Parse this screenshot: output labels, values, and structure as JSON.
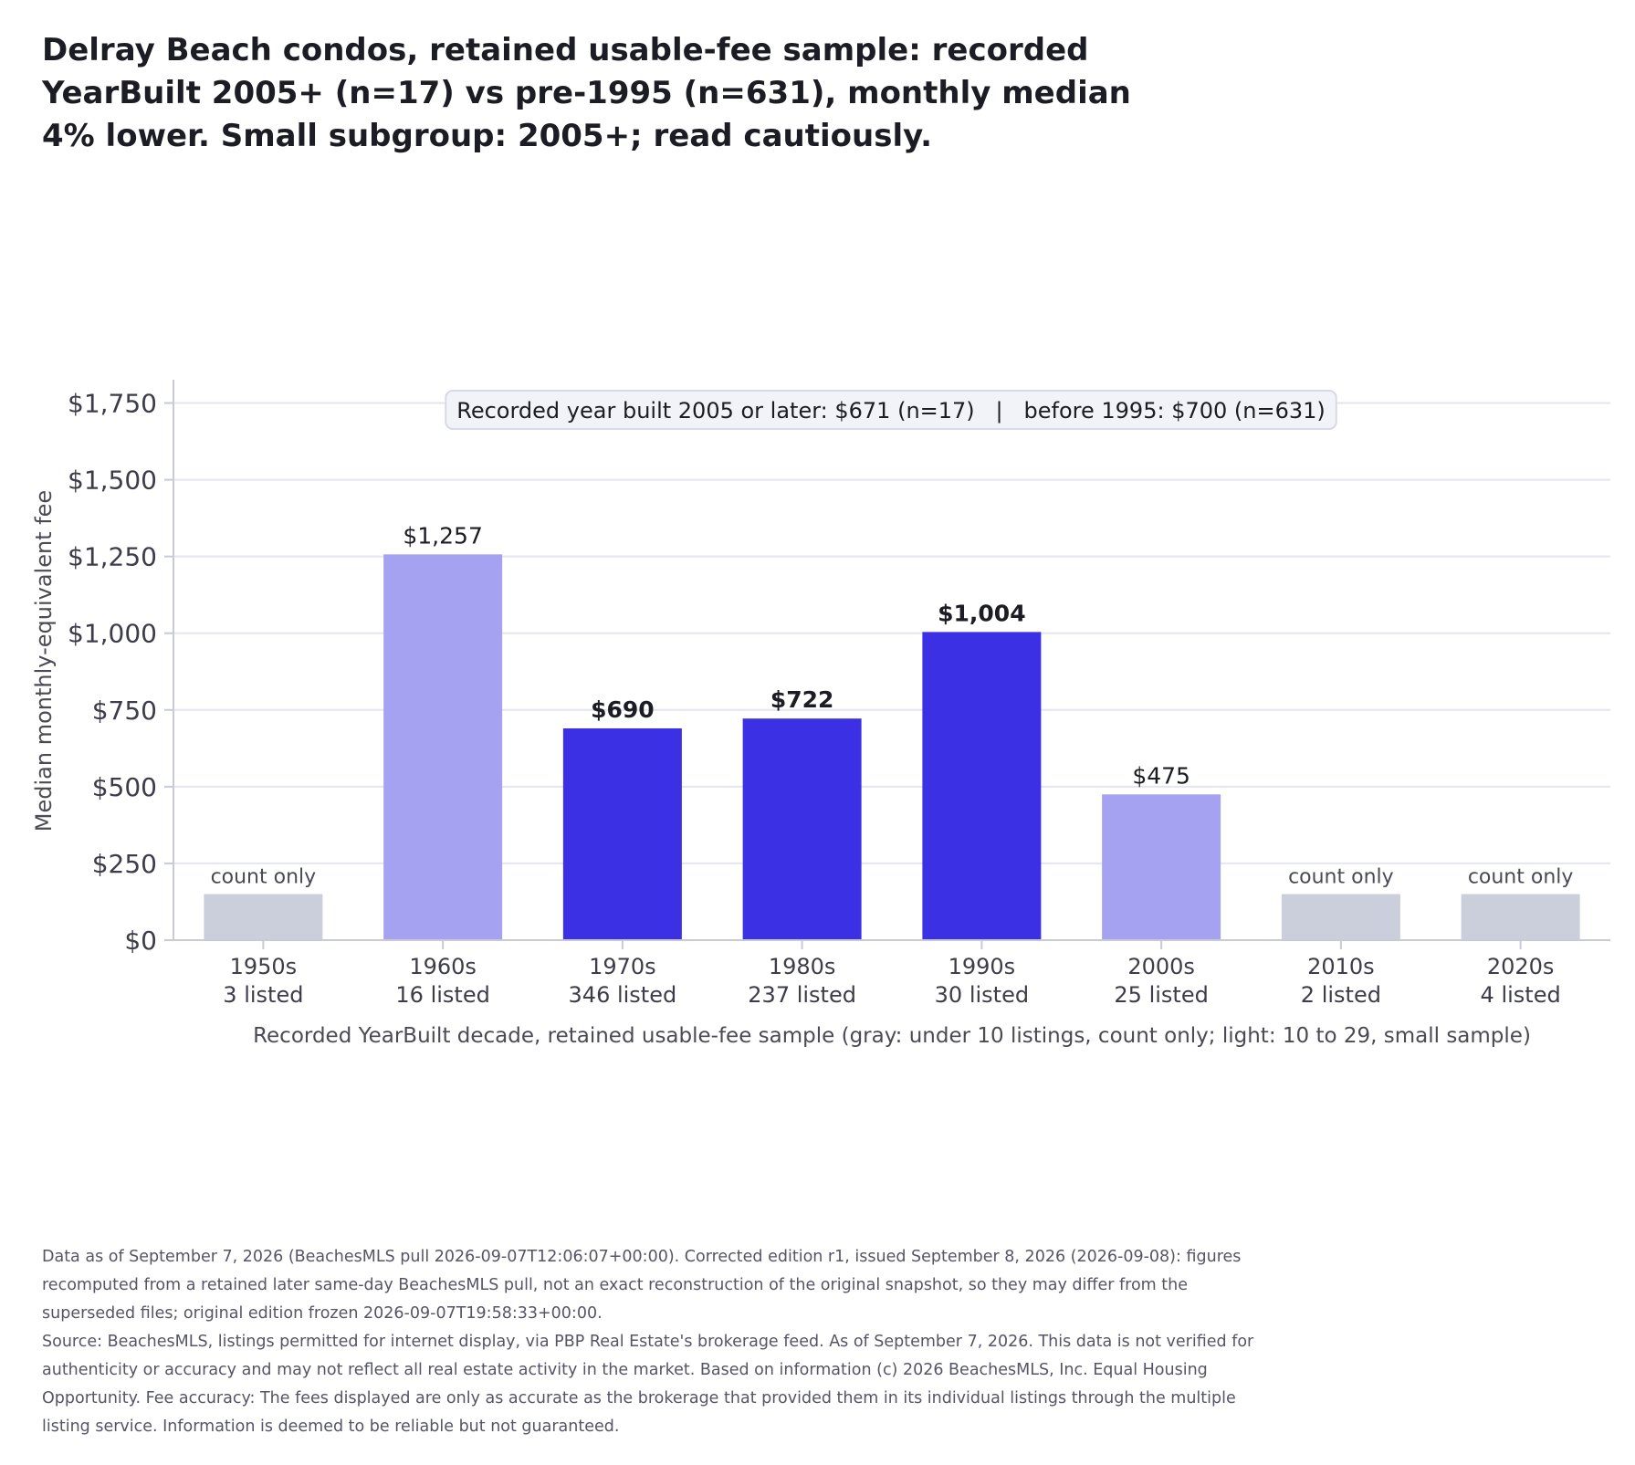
{
  "chart_data": {
    "type": "bar",
    "title": "Delray Beach condos, retained usable-fee sample: recorded YearBuilt 2005+ (n=17) vs pre-1995 (n=631), monthly median 4% lower. Small subgroup: 2005+; read cautiously.",
    "ylabel": "Median monthly-equivalent fee",
    "xlabel": "Recorded YearBuilt decade, retained usable-fee sample (gray: under 10 listings, count only; light: 10 to 29, small sample)",
    "ylim": [
      0,
      1820
    ],
    "yticks": [
      0,
      250,
      500,
      750,
      1000,
      1250,
      1500,
      1750
    ],
    "ytick_labels": [
      "$0",
      "$250",
      "$500",
      "$750",
      "$1,000",
      "$1,250",
      "$1,500",
      "$1,750"
    ],
    "grid": "horizontal",
    "categories": [
      "1950s",
      "1960s",
      "1970s",
      "1980s",
      "1990s",
      "2000s",
      "2010s",
      "2020s"
    ],
    "counts": [
      "3 listed",
      "16 listed",
      "346 listed",
      "237 listed",
      "30 listed",
      "25 listed",
      "2 listed",
      "4 listed"
    ],
    "values": [
      150,
      1257,
      690,
      722,
      1004,
      475,
      150,
      150
    ],
    "value_labels": [
      "count only",
      "$1,257",
      "$690",
      "$722",
      "$1,004",
      "$475",
      "count only",
      "count only"
    ],
    "bar_groups": [
      "count-only",
      "small",
      "full",
      "full",
      "full",
      "small",
      "count-only",
      "count-only"
    ],
    "colors": {
      "count-only": "#cbcfdc",
      "small": "#a6a2f2",
      "full": "#3b30e3",
      "grid": "#e3e5f0",
      "axis": "#c8cad6"
    },
    "annotation": "Recorded year built 2005 or later: $671 (n=17)   |   before 1995: $700 (n=631)"
  },
  "footnotes": [
    "Data as of September 7, 2026 (BeachesMLS pull 2026-09-07T12:06:07+00:00). Corrected edition r1, issued September 8, 2026 (2026-09-08): figures recomputed from a retained later same-day BeachesMLS pull, not an exact reconstruction of the original snapshot, so they may differ from the superseded files; original edition frozen 2026-09-07T19:58:33+00:00.",
    "Source: BeachesMLS, listings permitted for internet display, via PBP Real Estate's brokerage feed. As of September 7, 2026. This data is not verified for authenticity or accuracy and may not reflect all real estate activity in the market. Based on information (c) 2026 BeachesMLS, Inc. Equal Housing Opportunity. Fee accuracy: The fees displayed are only as accurate as the brokerage that provided them in its individual listings through the multiple listing service. Information is deemed to be reliable but not guaranteed."
  ]
}
